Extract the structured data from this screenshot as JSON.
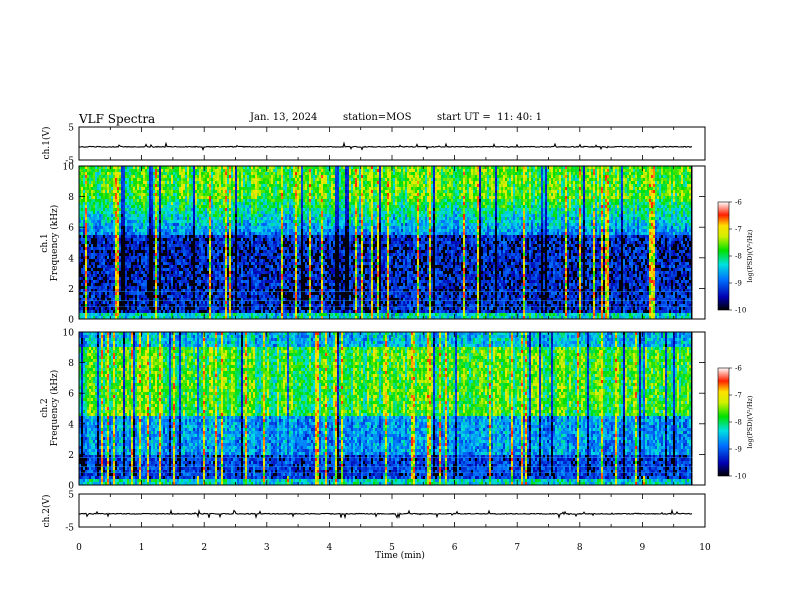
{
  "header": {
    "title": "VLF Spectra",
    "date": "Jan. 13, 2024",
    "station": "station=MOS",
    "start_ut": "start UT =  11: 40: 1"
  },
  "chart_data": [
    {
      "type": "line",
      "ylabel": "ch.1(V)",
      "ylim": [
        -5,
        5
      ],
      "yticks": [
        "5",
        "-5"
      ],
      "values_summary": "flat trace near -1 V with short spikes"
    },
    {
      "type": "heatmap",
      "ylabel": [
        "ch.1",
        "Frequency (kHz)"
      ],
      "ylim": [
        0,
        10
      ],
      "yticks": [
        "0",
        "2",
        "4",
        "6",
        "8",
        "10"
      ],
      "colorbar": {
        "label": "log(PSD)(V²/Hz)",
        "ticks": [
          "-6",
          "-7",
          "-8",
          "-9",
          "-10"
        ],
        "range": [
          -10,
          -6
        ]
      },
      "seed": 17
    },
    {
      "type": "heatmap",
      "ylabel": [
        "ch.2",
        "Frequency (kHz)"
      ],
      "ylim": [
        0,
        10
      ],
      "yticks": [
        "0",
        "2",
        "4",
        "6",
        "8",
        "10"
      ],
      "colorbar": {
        "label": "log(PSD)(V²/Hz)",
        "ticks": [
          "-6",
          "-7",
          "-8",
          "-9",
          "-10"
        ],
        "range": [
          -10,
          -6
        ]
      },
      "seed": 91
    },
    {
      "type": "line",
      "ylabel": "ch.2(V)",
      "ylim": [
        -5,
        5
      ],
      "yticks": [
        "5",
        "-5"
      ],
      "values_summary": "flat trace near -1 V with short spikes"
    }
  ],
  "xaxis": {
    "label": "Time (min)",
    "xlim": [
      0,
      10
    ],
    "ticks": [
      "0",
      "1",
      "2",
      "3",
      "4",
      "5",
      "6",
      "7",
      "8",
      "9",
      "10"
    ],
    "data_end": 9.8
  },
  "colors": {
    "line": "#000000",
    "background": "#ffffff"
  }
}
